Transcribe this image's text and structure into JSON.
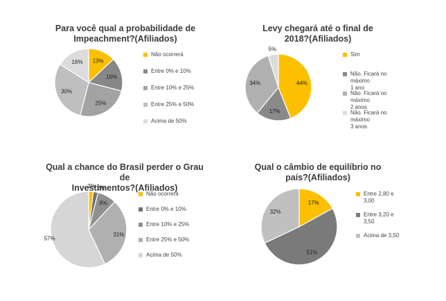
{
  "charts": [
    {
      "title_line1": "Para você qual a probabilidade de",
      "title_line2": "Impeachment?(Afiliados)",
      "chart_data": {
        "type": "pie",
        "title": "Para você qual a probabilidade de Impeachment?(Afiliados)",
        "categories": [
          "Não ocorrerá",
          "Entre 0% e 10%",
          "Entre 10% e 25%",
          "Entre 25% e 50%",
          "Acima de 50%"
        ],
        "values": [
          13,
          16,
          25,
          30,
          16
        ],
        "labels": [
          "13%",
          "16%",
          "25%",
          "30%",
          "16%"
        ],
        "colors": [
          "#fcc000",
          "#878787",
          "#a3a3a3",
          "#bfbfbf",
          "#dcdcdc"
        ],
        "legend": "right"
      }
    },
    {
      "title_line1": "Levy chegará até o final de",
      "title_line2": "2018?(Afiliados)",
      "chart_data": {
        "type": "pie",
        "title": "Levy chegará até o final de 2018?(Afiliados)",
        "categories": [
          "Sim",
          "Não. Ficará no máximo 1 ano",
          "Não. Ficará no máximo 2 anos",
          "Não. Ficará no máximo 3 anos"
        ],
        "legend_lines": [
          [
            "Sim"
          ],
          [
            "Não. Ficará no máximo",
            "1 ano"
          ],
          [
            "Não. Ficará no máximo",
            "2 anos"
          ],
          [
            "Não. Ficará no máximo",
            "3 anos"
          ]
        ],
        "values": [
          44,
          17,
          34,
          5
        ],
        "labels": [
          "44%",
          "17%",
          "34%",
          "5%"
        ],
        "colors": [
          "#fcc000",
          "#8a8a8a",
          "#b0b0b0",
          "#dcdcdc"
        ],
        "legend": "right"
      }
    },
    {
      "title_line1": "Qual a chance do Brasil perder o Grau de",
      "title_line2": "Investimentos?(Afiliados)",
      "chart_data": {
        "type": "pie",
        "title": "Qual a chance do Brasil perder o Grau de Investimentos?(Afiliados)",
        "categories": [
          "Não ocorrerá",
          "Entre 0% e 10%",
          "Entre 10% e 25%",
          "Entre 25% e 50%",
          "Acima de 50%"
        ],
        "values": [
          2,
          2,
          8,
          31,
          57
        ],
        "labels": [
          "2%",
          "2%",
          "8%",
          "31%",
          "57%"
        ],
        "colors": [
          "#fcc000",
          "#707070",
          "#8f8f8f",
          "#b0b0b0",
          "#d6d6d6"
        ],
        "legend": "right"
      }
    },
    {
      "title_line1": "Qual o câmbio de equilíbrio no",
      "title_line2": "país?(Afiliados)",
      "chart_data": {
        "type": "pie",
        "title": "Qual o câmbio de equilíbrio no país?(Afiliados)",
        "categories": [
          "Entre 2,80 e 3,00",
          "Entre 3,20 e 3,50",
          "Acima de 3,50"
        ],
        "legend_lines": [
          [
            "Entre 2,80 e",
            "3,00"
          ],
          [
            "Entre 3,20 e",
            "3,50"
          ],
          [
            "Acima de 3,50"
          ]
        ],
        "values": [
          17,
          51,
          32
        ],
        "labels": [
          "17%",
          "51%",
          "32%"
        ],
        "colors": [
          "#fcc000",
          "#7a7a7a",
          "#c0c0c0"
        ],
        "legend": "right"
      }
    }
  ]
}
